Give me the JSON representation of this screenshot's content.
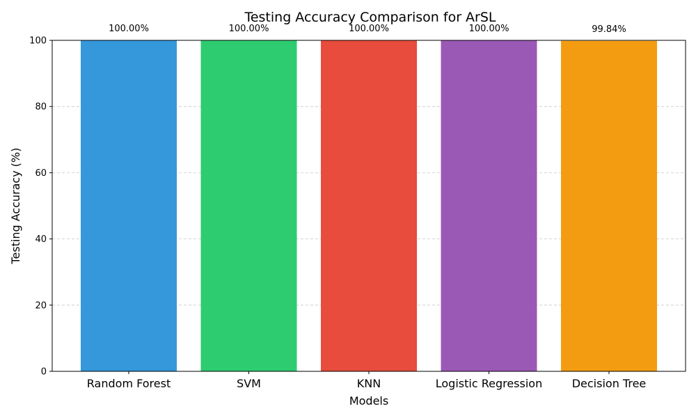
{
  "chart_data": {
    "type": "bar",
    "title": "Testing Accuracy Comparison for ArSL",
    "xlabel": "Models",
    "ylabel": "Testing Accuracy (%)",
    "categories": [
      "Random Forest",
      "SVM",
      "KNN",
      "Logistic Regression",
      "Decision Tree"
    ],
    "values": [
      100.0,
      100.0,
      100.0,
      100.0,
      99.84
    ],
    "value_labels": [
      "100.00%",
      "100.00%",
      "100.00%",
      "100.00%",
      "99.84%"
    ],
    "colors": [
      "#3498db",
      "#2ecc71",
      "#e74c3c",
      "#9b59b6",
      "#f39c12"
    ],
    "ylim": [
      0,
      100
    ],
    "yticks": [
      0,
      20,
      40,
      60,
      80,
      100
    ],
    "ytick_labels": [
      "0",
      "20",
      "40",
      "60",
      "80",
      "100"
    ],
    "grid": "y-dashed",
    "legend": "none"
  }
}
